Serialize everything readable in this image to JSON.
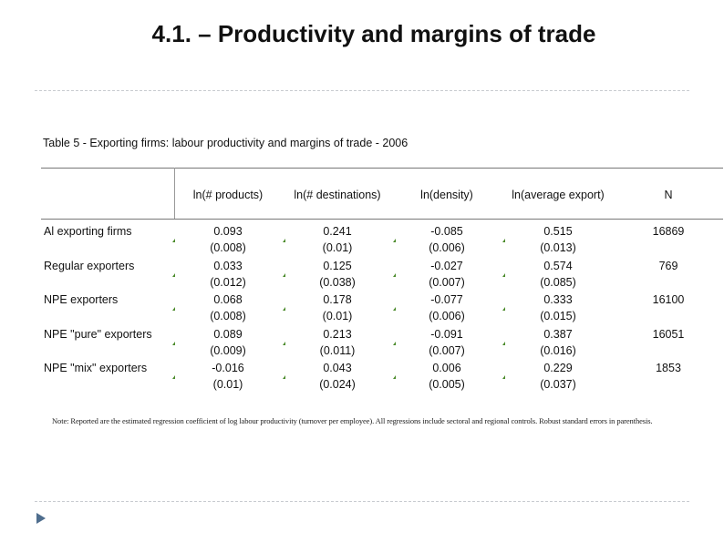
{
  "slide": {
    "title": "4.1. – Productivity and margins of trade"
  },
  "table": {
    "caption": "Table 5 - Exporting firms: labour productivity and margins of trade - 2006",
    "headers": [
      "ln(# products)",
      "ln(# destinations)",
      "ln(density)",
      "ln(average export)",
      "N"
    ],
    "rows": [
      {
        "label": "Al exporting firms",
        "coef": [
          "0.093",
          "0.241",
          "-0.085",
          "0.515"
        ],
        "se": [
          "(0.008)",
          "(0.01)",
          "(0.006)",
          "(0.013)"
        ],
        "n": "16869"
      },
      {
        "label": "Regular exporters",
        "coef": [
          "0.033",
          "0.125",
          "-0.027",
          "0.574"
        ],
        "se": [
          "(0.012)",
          "(0.038)",
          "(0.007)",
          "(0.085)"
        ],
        "n": "769"
      },
      {
        "label": "NPE exporters",
        "coef": [
          "0.068",
          "0.178",
          "-0.077",
          "0.333"
        ],
        "se": [
          "(0.008)",
          "(0.01)",
          "(0.006)",
          "(0.015)"
        ],
        "n": "16100"
      },
      {
        "label": "NPE \"pure\" exporters",
        "coef": [
          "0.089",
          "0.213",
          "-0.091",
          "0.387"
        ],
        "se": [
          "(0.009)",
          "(0.011)",
          "(0.007)",
          "(0.016)"
        ],
        "n": "16051"
      },
      {
        "label": "NPE \"mix\" exporters",
        "coef": [
          "-0.016",
          "0.043",
          "0.006",
          "0.229"
        ],
        "se": [
          "(0.01)",
          "(0.024)",
          "(0.005)",
          "(0.037)"
        ],
        "n": "1853"
      }
    ],
    "note": "Note: Reported are the estimated regression coefficient of log labour productivity (turnover per employee). All regressions include sectoral and regional controls. Robust standard errors in parenthesis."
  },
  "colors": {
    "bullet": "#4f6e8e",
    "rule": "#c8cbd0",
    "marker": "#4a8a2a"
  },
  "icons": {
    "bullet": "triangle-bullet-icon"
  }
}
